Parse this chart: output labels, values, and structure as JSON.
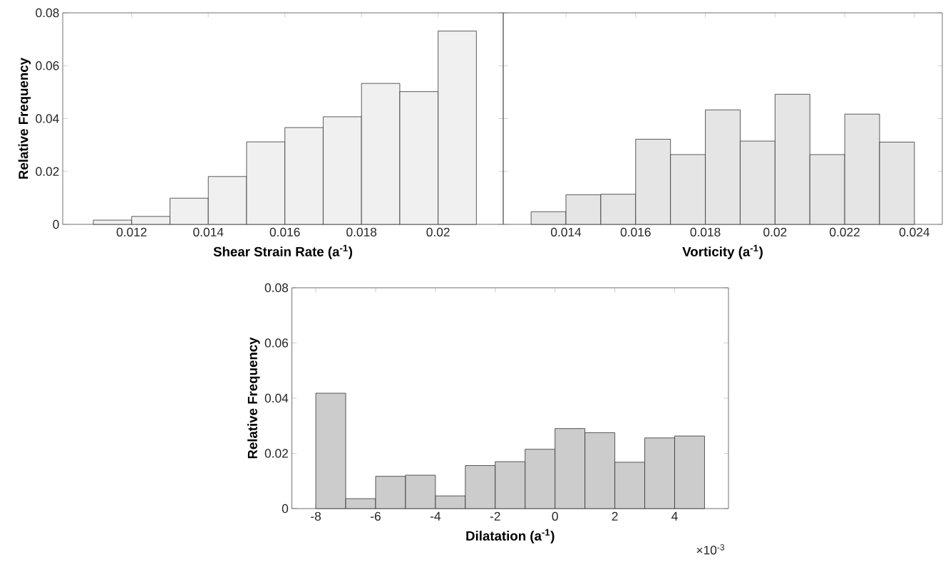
{
  "chart_data": [
    {
      "type": "histogram",
      "xlabel": "**Shear Strain Rate (a$^{-1}$)**",
      "ylabel": "**Relative Frequency**",
      "color": "#f0f0f0",
      "bins": [
        0.011,
        0.012,
        0.013,
        0.014,
        0.015,
        0.016,
        0.017,
        0.018,
        0.019,
        0.02,
        0.021
      ],
      "values": [
        0.0016,
        0.003,
        0.0099,
        0.0181,
        0.0312,
        0.0366,
        0.0407,
        0.0533,
        0.0502,
        0.0731
      ],
      "xlim": [
        0.0102,
        0.0217
      ],
      "ylim": [
        0,
        0.08
      ],
      "xticks": [
        0.012,
        0.014,
        0.016,
        0.018,
        0.02
      ],
      "yticks": [
        0,
        0.02,
        0.04,
        0.06,
        0.08
      ]
    },
    {
      "type": "histogram",
      "xlabel": "**Vorticity (a$^{-1}$)**",
      "color": "#e5e5e5",
      "bins": [
        0.013,
        0.014,
        0.015,
        0.016,
        0.017,
        0.018,
        0.019,
        0.02,
        0.021,
        0.022,
        0.023,
        0.024
      ],
      "values": [
        0.0048,
        0.0112,
        0.0114,
        0.0322,
        0.0264,
        0.0433,
        0.0315,
        0.0492,
        0.0264,
        0.0417,
        0.0311
      ],
      "xlim": [
        0.0122,
        0.0248
      ],
      "ylim": [
        0,
        0.08
      ],
      "xticks": [
        0.014,
        0.016,
        0.018,
        0.02,
        0.022,
        0.024
      ],
      "yticks": [
        0,
        0.02,
        0.04,
        0.06,
        0.08
      ],
      "tick_labels": "x"
    },
    {
      "type": "histogram",
      "xlabel": "**Dilatation (a$^{-1}$)**",
      "ylabel": "**Relative Frequency**",
      "color": "#cccccc",
      "bins": [
        -8,
        -7,
        -6,
        -5,
        -4,
        -3,
        -2,
        -1,
        0,
        1,
        2,
        3,
        4,
        5
      ],
      "values": [
        0.0418,
        0.0036,
        0.0117,
        0.0121,
        0.0046,
        0.0156,
        0.017,
        0.0215,
        0.029,
        0.0275,
        0.0168,
        0.0256,
        0.0263
      ],
      "xlim": [
        -8.8,
        5.8
      ],
      "ylim": [
        0,
        0.08
      ],
      "xticks": [
        -8,
        -6,
        -4,
        -2,
        0,
        2,
        4
      ],
      "yticks": [
        0,
        0.02,
        0.04,
        0.06,
        0.08
      ],
      "annotations": [
        "×10$^{-3}$"
      ]
    }
  ]
}
